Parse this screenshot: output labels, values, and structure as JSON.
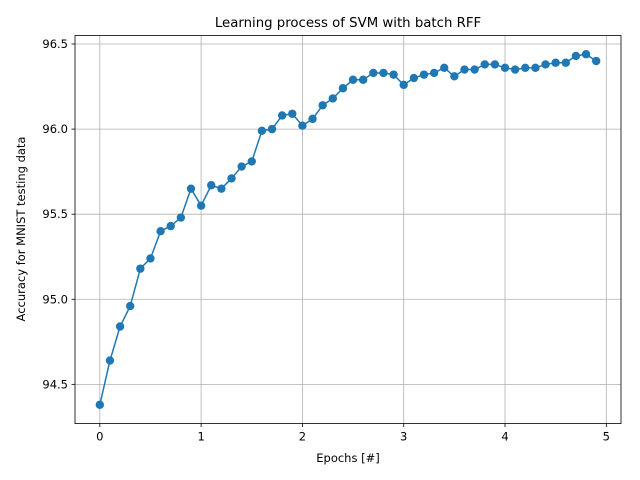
{
  "chart_data": {
    "type": "line",
    "title": "Learning process of SVM with batch RFF",
    "xlabel": "Epochs [#]",
    "ylabel": "Accuracy for MNIST testing data",
    "xlim": [
      -0.245,
      5.145
    ],
    "ylim": [
      94.27,
      96.55
    ],
    "xticks": [
      0,
      1,
      2,
      3,
      4,
      5
    ],
    "xtick_labels": [
      "0",
      "1",
      "2",
      "3",
      "4",
      "5"
    ],
    "yticks": [
      94.5,
      95.0,
      95.5,
      96.0,
      96.5
    ],
    "ytick_labels": [
      "94.5",
      "95.0",
      "95.5",
      "96.0",
      "96.5"
    ],
    "grid": true,
    "color": "#1f77b4",
    "marker": "circle",
    "series": [
      {
        "x": [
          0.0,
          0.1,
          0.2,
          0.3,
          0.4,
          0.5,
          0.6,
          0.7,
          0.8,
          0.9,
          1.0,
          1.1,
          1.2,
          1.3,
          1.4,
          1.5,
          1.6,
          1.7,
          1.8,
          1.9,
          2.0,
          2.1,
          2.2,
          2.3,
          2.4,
          2.5,
          2.6,
          2.7,
          2.8,
          2.9,
          3.0,
          3.1,
          3.2,
          3.3,
          3.4,
          3.5,
          3.6,
          3.7,
          3.8,
          3.9,
          4.0,
          4.1,
          4.2,
          4.3,
          4.4,
          4.5,
          4.6,
          4.7,
          4.8,
          4.9
        ],
        "y": [
          94.38,
          94.64,
          94.84,
          94.96,
          95.18,
          95.24,
          95.4,
          95.43,
          95.48,
          95.65,
          95.55,
          95.67,
          95.65,
          95.71,
          95.78,
          95.81,
          95.99,
          96.0,
          96.08,
          96.09,
          96.02,
          96.06,
          96.14,
          96.18,
          96.24,
          96.29,
          96.29,
          96.33,
          96.33,
          96.32,
          96.26,
          96.3,
          96.32,
          96.33,
          96.36,
          96.31,
          96.35,
          96.35,
          96.38,
          96.38,
          96.36,
          96.35,
          96.36,
          96.36,
          96.38,
          96.39,
          96.39,
          96.43,
          96.44,
          96.4
        ]
      }
    ]
  }
}
